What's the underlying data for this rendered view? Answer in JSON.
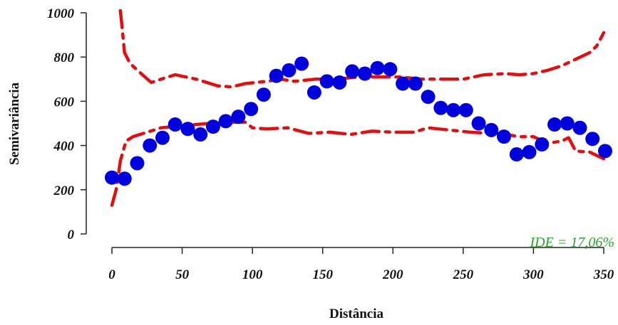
{
  "chart_data": {
    "type": "scatter",
    "title": "",
    "xlabel": "Distância",
    "ylabel": "Semivariância",
    "xlim": [
      0,
      350
    ],
    "ylim": [
      0,
      1000
    ],
    "xticks": [
      0,
      50,
      100,
      150,
      200,
      250,
      300,
      350
    ],
    "yticks": [
      0,
      200,
      400,
      600,
      800,
      1000
    ],
    "xtick_labels": [
      "0",
      "50",
      "100",
      "150",
      "200",
      "250",
      "300",
      "350"
    ],
    "ytick_labels": [
      "0",
      "200",
      "400",
      "600",
      "800",
      "1000"
    ],
    "grid": false,
    "annotation": "IDE = 17,06%",
    "colors": {
      "points": "#0000dd",
      "envelope": "#dd1111",
      "annotation": "#2e9e2e",
      "axis": "#222222"
    },
    "series": [
      {
        "type": "scatter",
        "x": [
          0,
          9,
          18,
          27,
          36,
          45,
          54,
          63,
          72,
          81,
          90,
          99,
          108,
          117,
          126,
          135,
          144,
          153,
          162,
          171,
          180,
          189,
          198,
          207,
          216,
          225,
          234,
          243,
          252,
          261,
          270,
          279,
          288,
          297,
          306,
          315,
          324,
          333,
          342,
          351
        ],
        "y": [
          255,
          250,
          320,
          400,
          435,
          495,
          475,
          450,
          485,
          510,
          530,
          565,
          630,
          715,
          740,
          770,
          640,
          690,
          685,
          735,
          725,
          750,
          745,
          680,
          680,
          620,
          570,
          560,
          560,
          500,
          470,
          440,
          360,
          370,
          405,
          495,
          500,
          480,
          430,
          375
        ]
      },
      {
        "type": "line",
        "style": "dashdot",
        "x": [
          6,
          7,
          9,
          13,
          20,
          28,
          35,
          45,
          60,
          75,
          85,
          95,
          110,
          120,
          130,
          145,
          160,
          175,
          190,
          205,
          220,
          235,
          250,
          265,
          280,
          290,
          300,
          310,
          320,
          330,
          340,
          345,
          350
        ],
        "y": [
          1010,
          950,
          820,
          770,
          730,
          685,
          700,
          720,
          700,
          670,
          665,
          680,
          690,
          700,
          690,
          700,
          700,
          710,
          710,
          710,
          700,
          700,
          700,
          720,
          725,
          720,
          725,
          740,
          760,
          790,
          820,
          850,
          910
        ]
      },
      {
        "type": "line",
        "style": "dashdot",
        "x": [
          0,
          3,
          6,
          10,
          15,
          25,
          35,
          50,
          70,
          85,
          95,
          100,
          110,
          125,
          140,
          155,
          170,
          185,
          200,
          215,
          225,
          240,
          255,
          270,
          280,
          290,
          300,
          310,
          320,
          325,
          330,
          340,
          350
        ],
        "y": [
          130,
          200,
          330,
          420,
          440,
          460,
          480,
          490,
          500,
          505,
          505,
          480,
          475,
          480,
          455,
          460,
          450,
          465,
          460,
          460,
          480,
          470,
          460,
          455,
          450,
          440,
          440,
          410,
          420,
          435,
          375,
          370,
          340
        ]
      }
    ]
  }
}
